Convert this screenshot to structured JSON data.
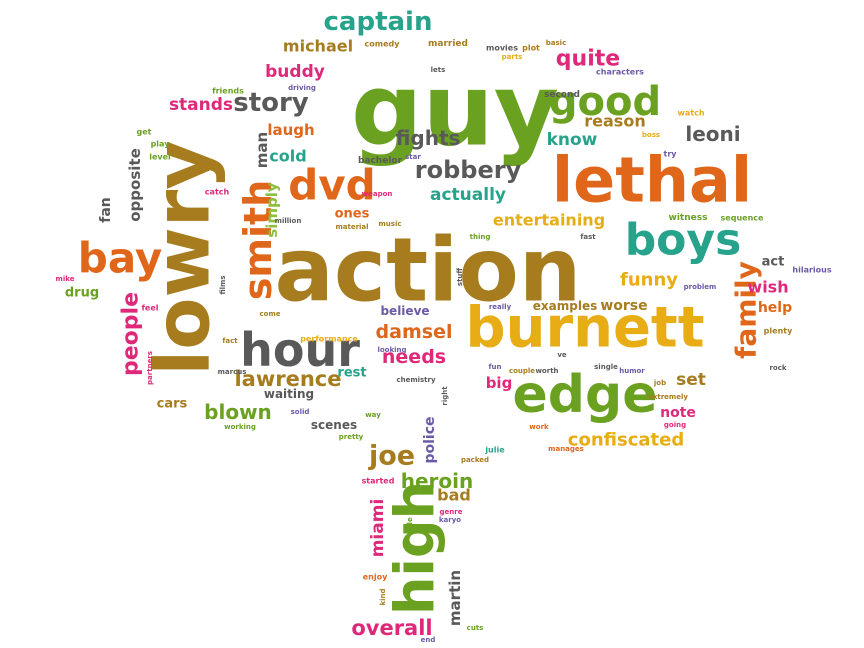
{
  "colors": {
    "green": "#6aa121",
    "brown": "#a67c1f",
    "orange": "#e0661a",
    "yellow": "#e8ad14",
    "teal": "#26a38a",
    "pink": "#e0287a",
    "gray": "#595959",
    "purple": "#6b5aa6",
    "lightgreen": "#8cbf3f"
  },
  "words": [
    {
      "t": "guy",
      "c": "green"
    },
    {
      "t": "action",
      "c": "brown"
    },
    {
      "t": "lowry",
      "c": "brown"
    },
    {
      "t": "lethal",
      "c": "orange"
    },
    {
      "t": "burnett",
      "c": "yellow"
    },
    {
      "t": "edge",
      "c": "green"
    },
    {
      "t": "high",
      "c": "green"
    },
    {
      "t": "boys",
      "c": "teal"
    },
    {
      "t": "hour",
      "c": "gray"
    },
    {
      "t": "good",
      "c": "green"
    },
    {
      "t": "dvd",
      "c": "orange"
    },
    {
      "t": "smith",
      "c": "orange"
    },
    {
      "t": "bay",
      "c": "orange"
    },
    {
      "t": "captain",
      "c": "teal"
    },
    {
      "t": "story",
      "c": "gray"
    },
    {
      "t": "robbery",
      "c": "gray"
    },
    {
      "t": "family",
      "c": "orange"
    },
    {
      "t": "lawrence",
      "c": "brown"
    },
    {
      "t": "joe",
      "c": "brown"
    },
    {
      "t": "overall",
      "c": "pink"
    },
    {
      "t": "damsel",
      "c": "orange"
    },
    {
      "t": "needs",
      "c": "pink"
    },
    {
      "t": "blown",
      "c": "green"
    },
    {
      "t": "people",
      "c": "pink"
    },
    {
      "t": "fights",
      "c": "gray"
    },
    {
      "t": "leoni",
      "c": "gray"
    },
    {
      "t": "quite",
      "c": "pink"
    },
    {
      "t": "confiscated",
      "c": "yellow"
    },
    {
      "t": "heroin",
      "c": "green"
    },
    {
      "t": "funny",
      "c": "yellow"
    },
    {
      "t": "entertaining",
      "c": "yellow"
    },
    {
      "t": "stands",
      "c": "pink"
    },
    {
      "t": "buddy",
      "c": "pink"
    },
    {
      "t": "michael",
      "c": "brown"
    },
    {
      "t": "reason",
      "c": "brown"
    },
    {
      "t": "know",
      "c": "teal"
    },
    {
      "t": "actually",
      "c": "teal"
    },
    {
      "t": "laugh",
      "c": "orange"
    },
    {
      "t": "cold",
      "c": "teal"
    },
    {
      "t": "set",
      "c": "brown"
    },
    {
      "t": "wish",
      "c": "pink"
    },
    {
      "t": "help",
      "c": "orange"
    },
    {
      "t": "bad",
      "c": "brown"
    },
    {
      "t": "miami",
      "c": "pink"
    },
    {
      "t": "martin",
      "c": "gray"
    },
    {
      "t": "police",
      "c": "purple"
    },
    {
      "t": "opposite",
      "c": "gray"
    },
    {
      "t": "fan",
      "c": "gray"
    },
    {
      "t": "man",
      "c": "gray"
    },
    {
      "t": "simply",
      "c": "lightgreen"
    },
    {
      "t": "ones",
      "c": "orange"
    },
    {
      "t": "rest",
      "c": "teal"
    },
    {
      "t": "cars",
      "c": "brown"
    },
    {
      "t": "scenes",
      "c": "gray"
    },
    {
      "t": "worse",
      "c": "brown"
    },
    {
      "t": "examples",
      "c": "brown"
    },
    {
      "t": "drug",
      "c": "green"
    },
    {
      "t": "note",
      "c": "pink"
    },
    {
      "t": "act",
      "c": "gray"
    },
    {
      "t": "believe",
      "c": "purple"
    },
    {
      "t": "waiting",
      "c": "gray"
    },
    {
      "t": "big",
      "c": "pink"
    },
    {
      "t": "married",
      "c": "brown"
    },
    {
      "t": "comedy",
      "c": "brown"
    },
    {
      "t": "movies",
      "c": "gray"
    },
    {
      "t": "plot",
      "c": "brown"
    },
    {
      "t": "basic",
      "c": "brown"
    },
    {
      "t": "parts",
      "c": "yellow"
    },
    {
      "t": "second",
      "c": "gray"
    },
    {
      "t": "characters",
      "c": "purple"
    },
    {
      "t": "friends",
      "c": "green"
    },
    {
      "t": "driving",
      "c": "purple"
    },
    {
      "t": "lets",
      "c": "gray"
    },
    {
      "t": "watch",
      "c": "yellow"
    },
    {
      "t": "boss",
      "c": "yellow"
    },
    {
      "t": "try",
      "c": "purple"
    },
    {
      "t": "get",
      "c": "green"
    },
    {
      "t": "play",
      "c": "green"
    },
    {
      "t": "level",
      "c": "green"
    },
    {
      "t": "bachelor",
      "c": "gray"
    },
    {
      "t": "star",
      "c": "purple"
    },
    {
      "t": "catch",
      "c": "pink"
    },
    {
      "t": "weapon",
      "c": "pink"
    },
    {
      "t": "million",
      "c": "gray"
    },
    {
      "t": "witness",
      "c": "green"
    },
    {
      "t": "sequence",
      "c": "green"
    },
    {
      "t": "music",
      "c": "brown"
    },
    {
      "t": "material",
      "c": "brown"
    },
    {
      "t": "thing",
      "c": "green"
    },
    {
      "t": "fast",
      "c": "gray"
    },
    {
      "t": "hilarious",
      "c": "purple"
    },
    {
      "t": "mike",
      "c": "pink"
    },
    {
      "t": "stuff",
      "c": "gray"
    },
    {
      "t": "films",
      "c": "gray"
    },
    {
      "t": "feel",
      "c": "pink"
    },
    {
      "t": "really",
      "c": "purple"
    },
    {
      "t": "problem",
      "c": "purple"
    },
    {
      "t": "plenty",
      "c": "brown"
    },
    {
      "t": "come",
      "c": "brown"
    },
    {
      "t": "fact",
      "c": "brown"
    },
    {
      "t": "partners",
      "c": "pink"
    },
    {
      "t": "looking",
      "c": "purple"
    },
    {
      "t": "ve",
      "c": "gray"
    },
    {
      "t": "rock",
      "c": "gray"
    },
    {
      "t": "fun",
      "c": "purple"
    },
    {
      "t": "single",
      "c": "gray"
    },
    {
      "t": "job",
      "c": "brown"
    },
    {
      "t": "marcus",
      "c": "gray"
    },
    {
      "t": "chemistry",
      "c": "gray"
    },
    {
      "t": "right",
      "c": "gray"
    },
    {
      "t": "couple",
      "c": "brown"
    },
    {
      "t": "worth",
      "c": "gray"
    },
    {
      "t": "humor",
      "c": "purple"
    },
    {
      "t": "extremely",
      "c": "brown"
    },
    {
      "t": "solid",
      "c": "purple"
    },
    {
      "t": "way",
      "c": "green"
    },
    {
      "t": "work",
      "c": "orange"
    },
    {
      "t": "going",
      "c": "pink"
    },
    {
      "t": "working",
      "c": "green"
    },
    {
      "t": "pretty",
      "c": "green"
    },
    {
      "t": "julie",
      "c": "teal"
    },
    {
      "t": "manages",
      "c": "orange"
    },
    {
      "t": "packed",
      "c": "brown"
    },
    {
      "t": "started",
      "c": "pink"
    },
    {
      "t": "genre",
      "c": "pink"
    },
    {
      "t": "karyo",
      "c": "purple"
    },
    {
      "t": "role",
      "c": "green"
    },
    {
      "t": "enjoy",
      "c": "orange"
    },
    {
      "t": "kind",
      "c": "brown"
    },
    {
      "t": "cuts",
      "c": "green"
    },
    {
      "t": "end",
      "c": "purple"
    },
    {
      "t": "performance",
      "c": "yellow"
    }
  ]
}
